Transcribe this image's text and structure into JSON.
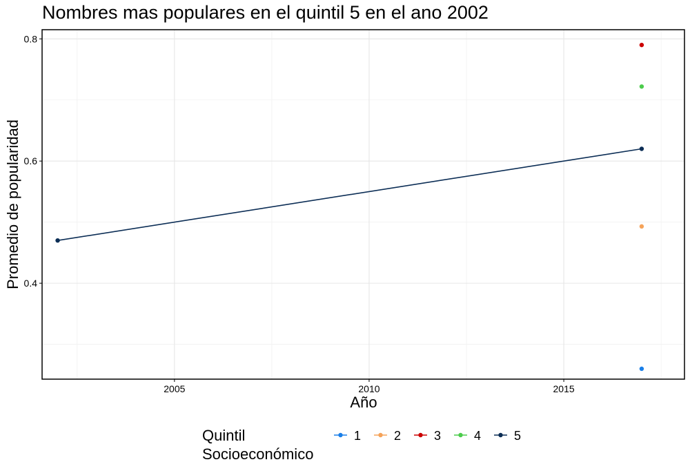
{
  "chart_data": {
    "type": "line",
    "title": "Nombres mas populares en el quintil 5 en el ano 2002",
    "xlabel": "Año",
    "ylabel": "Promedio de popularidad",
    "xlim": [
      2001.6,
      2018.1
    ],
    "ylim": [
      0.243,
      0.815
    ],
    "x_ticks": [
      2005,
      2010,
      2015
    ],
    "x_tick_labels": [
      "2005",
      "2010",
      "2015"
    ],
    "y_ticks": [
      0.4,
      0.6,
      0.8
    ],
    "y_tick_labels": [
      "0.4",
      "0.6",
      "0.8"
    ],
    "grid": true,
    "legend": {
      "title_lines": [
        "Quintil",
        "Socioeconómico"
      ],
      "position": "bottom"
    },
    "series": [
      {
        "name": "1",
        "color": "#1a7fe8",
        "points": [
          {
            "x": 2017,
            "y": 0.26
          }
        ]
      },
      {
        "name": "2",
        "color": "#f5a35a",
        "points": [
          {
            "x": 2017,
            "y": 0.493
          }
        ]
      },
      {
        "name": "3",
        "color": "#cc0000",
        "points": [
          {
            "x": 2017,
            "y": 0.79
          }
        ]
      },
      {
        "name": "4",
        "color": "#4ccc4c",
        "points": [
          {
            "x": 2017,
            "y": 0.722
          }
        ]
      },
      {
        "name": "5",
        "color": "#0b2d55",
        "points": [
          {
            "x": 2002,
            "y": 0.47
          },
          {
            "x": 2017,
            "y": 0.62
          }
        ]
      }
    ]
  }
}
